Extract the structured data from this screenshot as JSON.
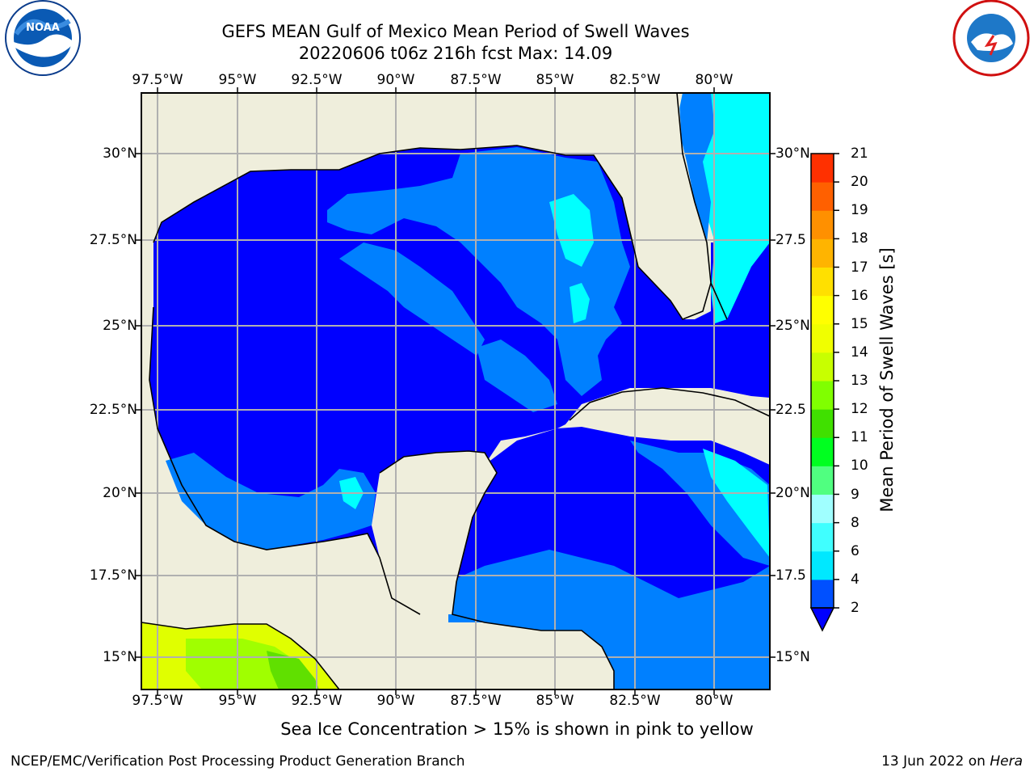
{
  "header": {
    "title_line1": "GEFS MEAN Gulf of Mexico Mean Period of Swell Waves",
    "title_line2": "20220606 t06z 216h fcst   Max: 14.09"
  },
  "logos": {
    "left": "noa-logo",
    "right": "nws-logo"
  },
  "map": {
    "lon_labels": [
      "97.5°W",
      "95°W",
      "92.5°W",
      "90°W",
      "87.5°W",
      "85°W",
      "82.5°W",
      "80°W"
    ],
    "lat_labels_left": [
      "30°N",
      "27.5°N",
      "25°N",
      "22.5°N",
      "20°N",
      "17.5°N",
      "15°N"
    ],
    "lat_labels_right": [
      "30°N",
      "27.5",
      "25°N",
      "22.5",
      "20°N",
      "17.5",
      "15°N"
    ],
    "colors": {
      "land": "#efeedc",
      "ocean_2_4": "#0000ff",
      "ocean_4_6": "#0080ff",
      "ocean_6_8": "#00ffff",
      "ice_green": "#a0ff00",
      "ice_yellow": "#e0ff00",
      "grid": "#b0b0b0"
    }
  },
  "colorbar": {
    "title": "Mean Period of Swell Waves [s]",
    "ticks": [
      "2",
      "4",
      "6",
      "8",
      "9",
      "10",
      "11",
      "12",
      "13",
      "14",
      "15",
      "16",
      "17",
      "18",
      "19",
      "20",
      "21"
    ],
    "colors": [
      "#0050ff",
      "#00e8ff",
      "#40ffff",
      "#a0ffff",
      "#50ff80",
      "#00ff20",
      "#40e000",
      "#80ff00",
      "#c8ff00",
      "#f0ff00",
      "#ffff00",
      "#ffe000",
      "#ffb400",
      "#ff9000",
      "#ff6000",
      "#ff3000",
      "#ff0000"
    ]
  },
  "footer": {
    "note": "Sea Ice Concentration > 15% is shown in pink to yellow",
    "credit": "NCEP/EMC/Verification Post Processing Product Generation Branch",
    "date": "13 Jun 2022 on",
    "machine": "Hera"
  }
}
